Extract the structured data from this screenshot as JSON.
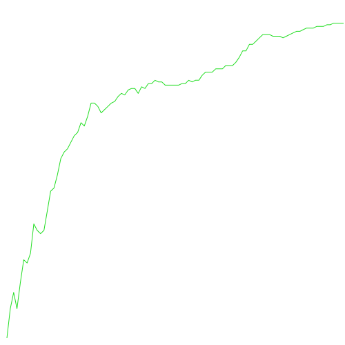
{
  "chart_data": {
    "type": "line",
    "title": "",
    "xlabel": "",
    "ylabel": "",
    "grid": false,
    "legend": "none",
    "xlim": [
      0,
      100
    ],
    "ylim": [
      0,
      100
    ],
    "series": [
      {
        "color": "#22dd22",
        "x": [
          0,
          1,
          2,
          3,
          4,
          5,
          6,
          7,
          8,
          9,
          10,
          11,
          12,
          13,
          14,
          15,
          16,
          17,
          18,
          19,
          20,
          21,
          22,
          23,
          24,
          25,
          26,
          27,
          28,
          29,
          30,
          31,
          32,
          33,
          34,
          35,
          36,
          37,
          38,
          39,
          40,
          41,
          42,
          43,
          44,
          45,
          46,
          47,
          48,
          49,
          50,
          51,
          52,
          53,
          54,
          55,
          56,
          57,
          58,
          59,
          60,
          61,
          62,
          63,
          64,
          65,
          66,
          67,
          68,
          69,
          70,
          71,
          72,
          73,
          74,
          75,
          76,
          77,
          78,
          79,
          80,
          81,
          82,
          83,
          84,
          85,
          86,
          87,
          88,
          89,
          90,
          91,
          92,
          93,
          94,
          95,
          96,
          97,
          98,
          99,
          100
        ],
        "values": [
          0,
          9,
          14,
          9,
          17,
          24,
          23,
          26,
          35,
          33,
          32,
          33,
          39,
          45,
          46,
          50,
          55,
          57,
          58,
          60,
          62,
          63,
          66,
          65,
          68,
          72,
          72,
          71,
          69,
          70,
          71,
          72,
          72.5,
          74,
          75,
          74.5,
          76,
          76.5,
          76.5,
          75,
          77,
          76.5,
          78,
          78,
          79,
          78.5,
          78.5,
          77.5,
          77.5,
          77.5,
          77.5,
          77.5,
          78,
          78,
          79,
          78.5,
          79,
          79,
          80.5,
          81.5,
          81.5,
          81.5,
          82.5,
          82.5,
          82.5,
          83.5,
          83.5,
          83.5,
          84.5,
          86,
          88,
          88,
          90,
          90,
          91,
          92,
          93,
          93,
          93,
          92.5,
          92.5,
          92.5,
          92,
          92.5,
          93,
          93.5,
          94,
          94,
          94.5,
          95,
          95,
          95,
          95.5,
          95.5,
          95.5,
          96,
          96,
          96.5,
          96.5,
          96.5,
          96.5
        ]
      }
    ]
  }
}
